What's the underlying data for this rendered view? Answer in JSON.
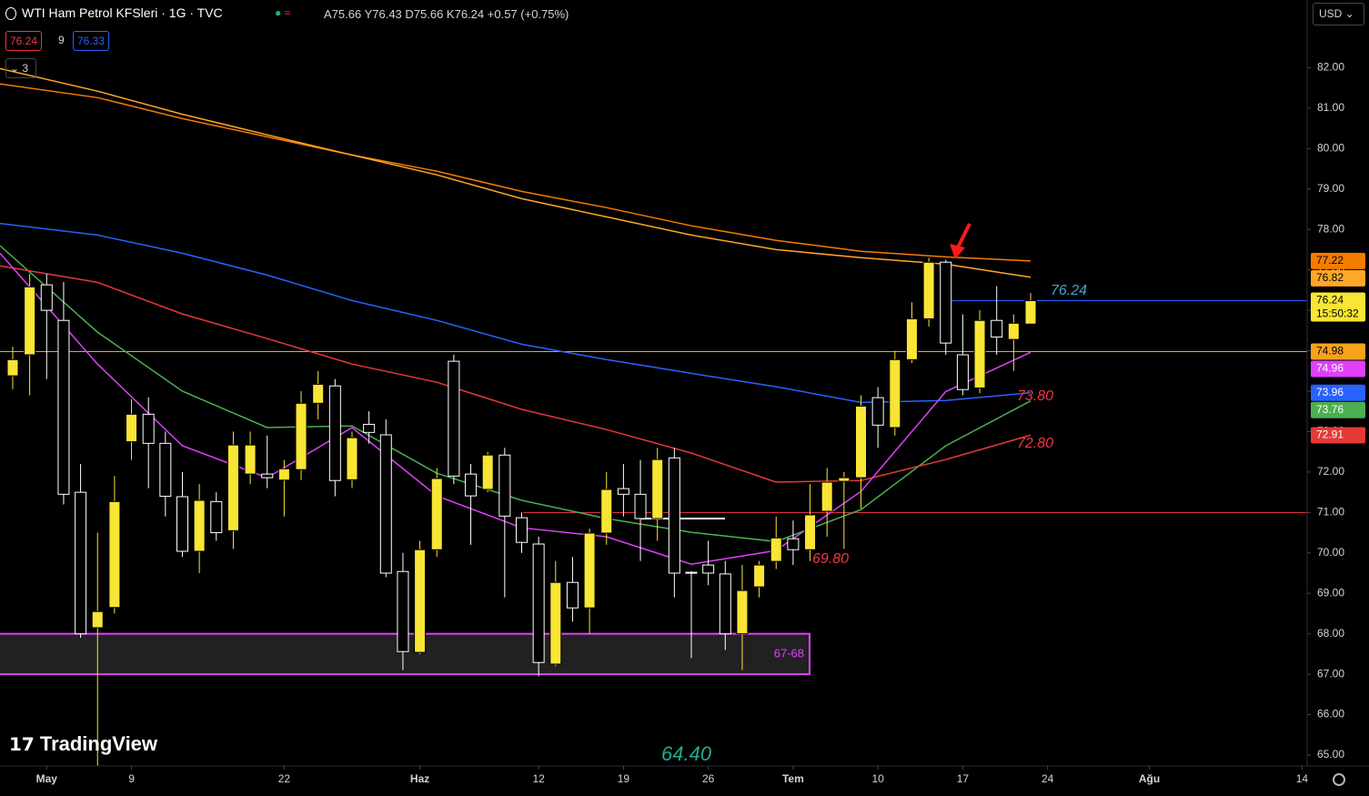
{
  "header": {
    "symbol": "WTI Ham Petrol KFSleri · 1G · TVC",
    "ohlc": "A75.66 Y76.43 D75.66 K76.24",
    "change": "+0.57 (+0.75%)",
    "bid": "76.24",
    "spread": "9",
    "ask": "76.33",
    "collapsed": "3",
    "currency": "USD",
    "logo": "TradingView",
    "countdown": "15:50:32"
  },
  "chart_data": {
    "type": "candlestick",
    "xlim": [
      -0.75,
      76.3
    ],
    "xticks": [
      {
        "value": 2,
        "label": "May"
      },
      {
        "value": 7,
        "label": "9"
      },
      {
        "value": 16,
        "label": "22"
      },
      {
        "value": 24,
        "label": "Haz"
      },
      {
        "value": 31,
        "label": "12"
      },
      {
        "value": 36,
        "label": "19"
      },
      {
        "value": 41,
        "label": "26"
      },
      {
        "value": 46,
        "label": "Tem"
      },
      {
        "value": 51,
        "label": "10"
      },
      {
        "value": 56,
        "label": "17"
      },
      {
        "value": 61,
        "label": "24"
      },
      {
        "value": 67,
        "label": "Ağu"
      },
      {
        "value": 76,
        "label": "14"
      }
    ],
    "ylim": [
      64.73,
      83.0
    ],
    "yticks": [
      {
        "value": 65,
        "label": "65.00"
      },
      {
        "value": 66,
        "label": "66.00"
      },
      {
        "value": 67,
        "label": "67.00"
      },
      {
        "value": 68,
        "label": "68.00"
      },
      {
        "value": 69,
        "label": "69.00"
      },
      {
        "value": 70,
        "label": "70.00"
      },
      {
        "value": 71,
        "label": "71.00"
      },
      {
        "value": 72,
        "label": "72.00"
      },
      {
        "value": 73,
        "label": "73.00"
      },
      {
        "value": 74,
        "label": "74.00"
      },
      {
        "value": 75,
        "label": "75.00"
      },
      {
        "value": 76,
        "label": "76.00"
      },
      {
        "value": 77,
        "label": "77.00"
      },
      {
        "value": 78,
        "label": "78.00"
      },
      {
        "value": 79,
        "label": "79.00"
      },
      {
        "value": 80,
        "label": "80.00"
      },
      {
        "value": 81,
        "label": "81.00"
      },
      {
        "value": 82,
        "label": "82.00"
      }
    ],
    "candles": {
      "up_color": "#f9e534",
      "down_color": "#ffffff",
      "x": [
        0,
        1,
        2,
        3,
        4,
        5,
        6,
        7,
        8,
        9,
        10,
        11,
        12,
        13,
        14,
        15,
        16,
        17,
        18,
        19,
        20,
        21,
        22,
        23,
        24,
        25,
        26,
        27,
        28,
        29,
        30,
        31,
        32,
        33,
        34,
        35,
        36,
        37,
        38,
        39,
        40,
        41,
        42,
        43,
        44,
        45,
        46,
        47,
        48,
        49,
        50,
        51,
        52,
        53,
        54,
        55,
        56,
        57,
        58,
        59,
        60
      ],
      "open": [
        74.38,
        74.9,
        76.63,
        75.75,
        71.5,
        68.15,
        68.65,
        72.75,
        73.43,
        72.71,
        71.39,
        70.04,
        71.27,
        70.55,
        71.95,
        71.95,
        71.8,
        72.06,
        73.7,
        74.13,
        71.81,
        73.18,
        72.92,
        69.54,
        67.54,
        70.08,
        74.74,
        71.95,
        71.57,
        72.42,
        70.87,
        70.22,
        67.25,
        69.27,
        68.64,
        70.49,
        71.59,
        71.45,
        70.85,
        72.35,
        69.52,
        69.7,
        69.48,
        68.0,
        69.16,
        69.79,
        70.35,
        70.08,
        71.03,
        71.77,
        71.86,
        73.84,
        73.1,
        74.78,
        75.79,
        77.19,
        74.9,
        74.08,
        75.75,
        75.28,
        75.66
      ],
      "high": [
        75.1,
        76.9,
        76.9,
        76.7,
        72.2,
        70.5,
        71.9,
        73.8,
        73.85,
        73.0,
        72.0,
        71.7,
        71.5,
        73.0,
        73.0,
        72.9,
        72.3,
        74.0,
        74.5,
        74.3,
        73.0,
        73.5,
        73.3,
        70.0,
        70.3,
        72.1,
        74.9,
        72.2,
        72.5,
        72.6,
        71.0,
        70.4,
        69.8,
        69.9,
        70.6,
        72.0,
        72.2,
        72.3,
        72.6,
        72.6,
        69.55,
        70.3,
        69.8,
        69.7,
        69.8,
        70.9,
        70.8,
        71.7,
        72.1,
        72.0,
        73.9,
        74.1,
        75.0,
        76.2,
        77.3,
        77.25,
        75.9,
        76.0,
        76.6,
        75.9,
        76.43
      ],
      "low": [
        74.05,
        73.9,
        74.3,
        71.2,
        67.9,
        64.4,
        68.5,
        72.3,
        71.6,
        70.9,
        69.9,
        69.5,
        70.3,
        70.1,
        71.7,
        71.6,
        70.9,
        71.8,
        73.3,
        71.4,
        71.6,
        72.7,
        69.4,
        67.1,
        67.5,
        69.9,
        71.7,
        70.2,
        71.5,
        68.9,
        70.0,
        66.95,
        67.2,
        68.3,
        68.0,
        70.2,
        70.9,
        69.8,
        70.3,
        68.9,
        67.4,
        69.2,
        67.6,
        67.1,
        68.9,
        69.6,
        69.7,
        69.8,
        70.4,
        70.1,
        71.1,
        72.6,
        72.9,
        74.7,
        75.6,
        74.9,
        73.9,
        73.95,
        74.9,
        74.5,
        75.66
      ],
      "close": [
        74.78,
        76.58,
        76.0,
        71.45,
        68.0,
        68.55,
        71.27,
        73.43,
        72.71,
        71.4,
        70.04,
        71.3,
        70.5,
        72.67,
        72.67,
        71.86,
        72.08,
        73.7,
        74.17,
        71.79,
        72.85,
        72.98,
        69.5,
        67.56,
        70.08,
        71.84,
        71.9,
        71.41,
        72.42,
        70.91,
        70.26,
        67.29,
        69.27,
        68.64,
        70.49,
        71.57,
        71.45,
        70.85,
        72.31,
        69.5,
        69.5,
        69.5,
        68.0,
        69.07,
        69.7,
        70.37,
        70.08,
        70.94,
        71.75,
        71.86,
        73.63,
        73.16,
        74.78,
        75.79,
        77.19,
        75.19,
        74.04,
        75.75,
        75.34,
        75.68,
        76.24
      ]
    },
    "series": [
      {
        "color": "#f57c00",
        "x": [
          -0.75,
          5,
          10,
          15,
          20,
          25,
          30,
          35,
          40,
          45,
          50,
          55,
          60
        ],
        "values": [
          81.6,
          81.26,
          80.74,
          80.29,
          79.84,
          79.44,
          78.94,
          78.54,
          78.09,
          77.73,
          77.46,
          77.32,
          77.22
        ]
      },
      {
        "color": "#ffa726",
        "x": [
          -0.75,
          5,
          10,
          15,
          20,
          25,
          30,
          35,
          40,
          45,
          50,
          55,
          60
        ],
        "values": [
          81.98,
          81.42,
          80.85,
          80.34,
          79.84,
          79.35,
          78.76,
          78.31,
          77.86,
          77.5,
          77.3,
          77.14,
          76.82
        ]
      },
      {
        "color": "#2962ff",
        "x": [
          -0.75,
          5,
          10,
          15,
          20,
          25,
          30,
          35,
          40,
          45,
          50,
          55,
          60
        ],
        "values": [
          78.15,
          77.86,
          77.41,
          76.87,
          76.24,
          75.75,
          75.16,
          74.78,
          74.44,
          74.11,
          73.72,
          73.77,
          73.96
        ]
      },
      {
        "color": "#4caf50",
        "x": [
          -0.75,
          5,
          10,
          15,
          20,
          25,
          30,
          35,
          40,
          45,
          50,
          55,
          60
        ],
        "values": [
          77.6,
          75.46,
          74.0,
          73.1,
          73.14,
          71.97,
          71.3,
          70.85,
          70.51,
          70.28,
          71.07,
          72.65,
          73.76
        ]
      },
      {
        "color": "#e53935",
        "x": [
          -0.75,
          5,
          10,
          15,
          20,
          25,
          30,
          35,
          40,
          45,
          50,
          55,
          60
        ],
        "values": [
          77.1,
          76.69,
          75.91,
          75.3,
          74.67,
          74.22,
          73.55,
          73.05,
          72.47,
          71.75,
          71.79,
          72.31,
          72.91
        ]
      },
      {
        "color": "#e040fb",
        "x": [
          -0.75,
          5,
          10,
          15,
          20,
          25,
          30,
          35,
          40,
          45,
          50,
          55,
          60
        ],
        "values": [
          77.41,
          74.67,
          72.65,
          71.86,
          73.1,
          71.41,
          70.62,
          70.4,
          69.72,
          70.06,
          71.52,
          73.99,
          74.96
        ]
      }
    ],
    "hlines": [
      {
        "value": 74.98,
        "color": "#f7a21b"
      },
      {
        "value": 76.24,
        "color": "#2962ff"
      },
      {
        "value": 71.0,
        "color": "#f23645"
      },
      {
        "value": 70.85,
        "color": "#ffffff"
      }
    ],
    "zones": [
      {
        "from": 67,
        "to": 68,
        "label": "67-68",
        "color": "#e040fb"
      }
    ],
    "annotations": [
      {
        "text": "76.24",
        "color": "#3fa9c9"
      },
      {
        "text": "73.80",
        "color": "#f23645"
      },
      {
        "text": "72.80",
        "color": "#f23645"
      },
      {
        "text": "69.80",
        "color": "#f23645"
      },
      {
        "text": "64.40",
        "color": "#22ab94"
      }
    ]
  }
}
